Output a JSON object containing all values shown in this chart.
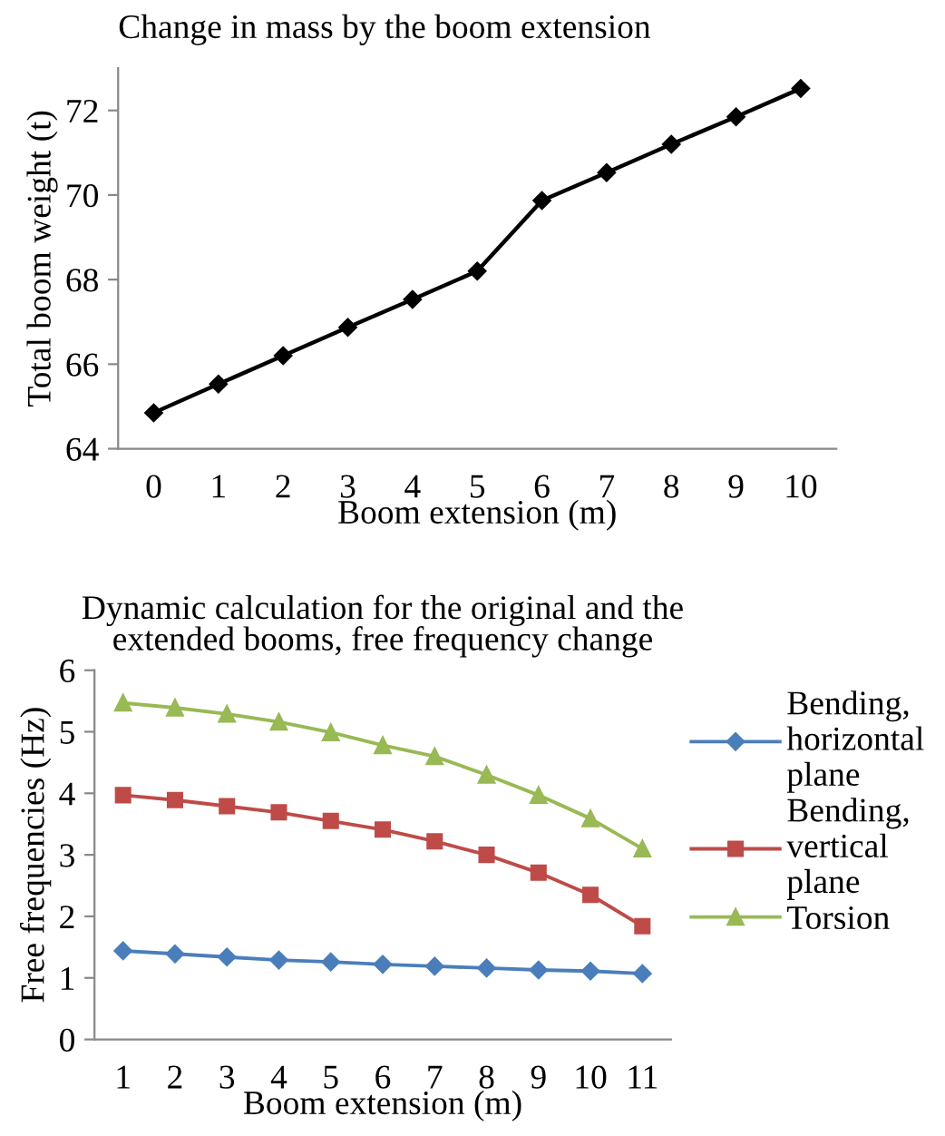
{
  "chart_data": [
    {
      "type": "line",
      "title": "Change in mass by the boom extension",
      "xlabel": "Boom extension (m)",
      "ylabel": "Total boom weight (t)",
      "categories": [
        "0",
        "1",
        "2",
        "3",
        "4",
        "5",
        "6",
        "7",
        "8",
        "9",
        "10"
      ],
      "series": [
        {
          "color": "#000000",
          "marker": "diamond",
          "values": [
            64.85,
            65.53,
            66.2,
            66.87,
            67.53,
            68.2,
            69.87,
            70.53,
            71.2,
            71.85,
            72.52
          ]
        }
      ],
      "ylim": [
        64,
        73
      ],
      "yticks": [
        64,
        66,
        68,
        70,
        72
      ],
      "grid": false,
      "legend": false,
      "line_style": "solid"
    },
    {
      "type": "line",
      "title": "Dynamic calculation for the original and the extended booms, free frequency change",
      "xlabel": "Boom extension (m)",
      "ylabel": "Free frequencies (Hz)",
      "categories": [
        "1",
        "2",
        "3",
        "4",
        "5",
        "6",
        "7",
        "8",
        "9",
        "10",
        "11"
      ],
      "series": [
        {
          "name": "Bending, horizontal plane",
          "color": "#4a7ebb",
          "marker": "diamond",
          "values": [
            1.44,
            1.39,
            1.34,
            1.29,
            1.26,
            1.22,
            1.19,
            1.16,
            1.13,
            1.11,
            1.07
          ]
        },
        {
          "name": "Bending, vertical plane",
          "color": "#be4b48",
          "marker": "square",
          "values": [
            3.97,
            3.89,
            3.79,
            3.69,
            3.55,
            3.41,
            3.22,
            3.0,
            2.71,
            2.35,
            1.84
          ]
        },
        {
          "name": "Torsion",
          "color": "#98b954",
          "marker": "triangle",
          "values": [
            5.47,
            5.39,
            5.29,
            5.16,
            4.99,
            4.78,
            4.6,
            4.3,
            3.97,
            3.59,
            3.1
          ]
        }
      ],
      "ylim": [
        0,
        6
      ],
      "yticks": [
        0,
        1,
        2,
        3,
        4,
        5,
        6
      ],
      "grid": false,
      "legend": "right",
      "line_style": "solid"
    }
  ]
}
